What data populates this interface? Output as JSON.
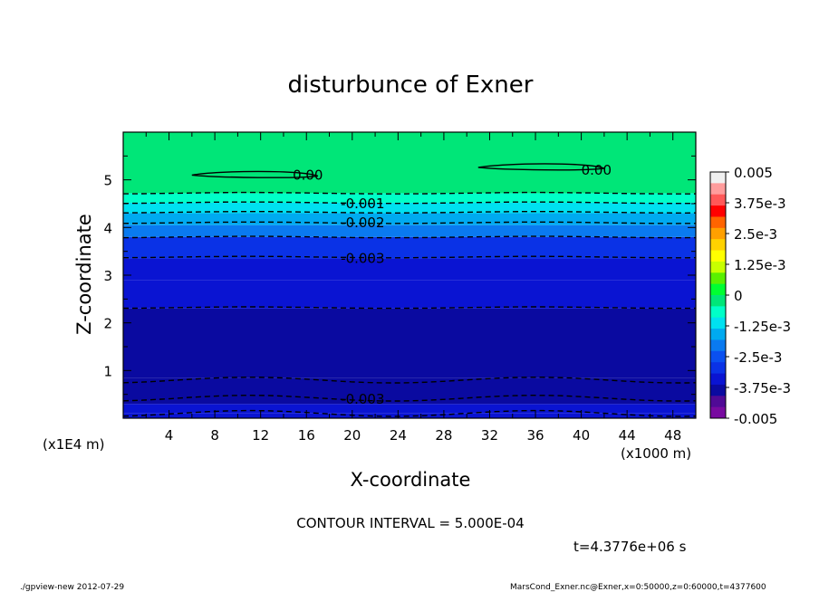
{
  "chart_data": {
    "type": "heatmap",
    "title": "disturbunce of Exner",
    "xlabel": "X-coordinate",
    "ylabel": "Z-coordinate",
    "x_unit_label": "(x1000 m)",
    "y_unit_label": "(x1E4 m)",
    "x_ticks": [
      4,
      8,
      12,
      16,
      20,
      24,
      28,
      32,
      36,
      40,
      44,
      48
    ],
    "y_ticks": [
      1,
      2,
      3,
      4,
      5
    ],
    "xlim": [
      0,
      50
    ],
    "ylim": [
      0,
      6
    ],
    "contour_interval_text": "CONTOUR INTERVAL = 5.000E-04",
    "time_text": "t=4.3776e+06 s",
    "colorbar": {
      "min": -0.005,
      "max": 0.005,
      "labels": [
        "0.005",
        "3.75e-3",
        "2.5e-3",
        "1.25e-3",
        "0",
        "-1.25e-3",
        "-2.5e-3",
        "-3.75e-3",
        "-0.005"
      ],
      "colors": [
        "#f0f0f0",
        "#ff9c9c",
        "#ff5858",
        "#ff0000",
        "#ff6400",
        "#ffa000",
        "#ffd200",
        "#ffff00",
        "#c8ff00",
        "#5af000",
        "#00ff32",
        "#00e678",
        "#00ffc8",
        "#00e1f0",
        "#00aaf0",
        "#0a7af0",
        "#0a50f0",
        "#0a32e6",
        "#0a14d2",
        "#0a0aa0",
        "#500a96",
        "#780aa0"
      ]
    },
    "bands": [
      {
        "z": [
          0.0,
          0.1
        ],
        "value": -0.00325
      },
      {
        "z": [
          0.1,
          0.3
        ],
        "value": -0.0035
      },
      {
        "z": [
          0.3,
          0.85
        ],
        "value": -0.0037
      },
      {
        "z": [
          0.85,
          2.3
        ],
        "value": -0.0039
      },
      {
        "z": [
          2.3,
          2.9
        ],
        "value": -0.0035
      },
      {
        "z": [
          2.9,
          3.35
        ],
        "value": -0.0034
      },
      {
        "z": [
          3.35,
          3.8
        ],
        "value": -0.00275
      },
      {
        "z": [
          3.8,
          4.05
        ],
        "value": -0.00225
      },
      {
        "z": [
          4.05,
          4.3
        ],
        "value": -0.00175
      },
      {
        "z": [
          4.3,
          4.52
        ],
        "value": -0.0013
      },
      {
        "z": [
          4.52,
          4.72
        ],
        "value": -0.0008
      },
      {
        "z": [
          4.72,
          6.0
        ],
        "value": 0
      }
    ],
    "contour_levels_z": [
      0.1,
      0.42,
      0.8,
      2.32,
      3.38,
      3.8,
      4.1,
      4.32,
      4.52,
      4.72
    ],
    "contour_labels": [
      {
        "text": "0.00",
        "x": 14.8,
        "z": 5.1
      },
      {
        "text": "0.00",
        "x": 40.0,
        "z": 5.2
      },
      {
        "text": "-0.001",
        "x": 19.0,
        "z": 4.5
      },
      {
        "text": "-0.002",
        "x": 19.0,
        "z": 4.1
      },
      {
        "text": "-0.003",
        "x": 19.0,
        "z": 3.35
      },
      {
        "text": "-0.003",
        "x": 19.0,
        "z": 0.4
      }
    ],
    "closed_contours": [
      {
        "x": [
          6,
          17
        ],
        "z": 5.1
      },
      {
        "x": [
          31,
          42
        ],
        "z": 5.26
      }
    ]
  },
  "footer": {
    "left": "./gpview-new   2012-07-29",
    "right": "MarsCond_Exner.nc@Exner,x=0:50000,z=0:60000,t=4377600"
  }
}
